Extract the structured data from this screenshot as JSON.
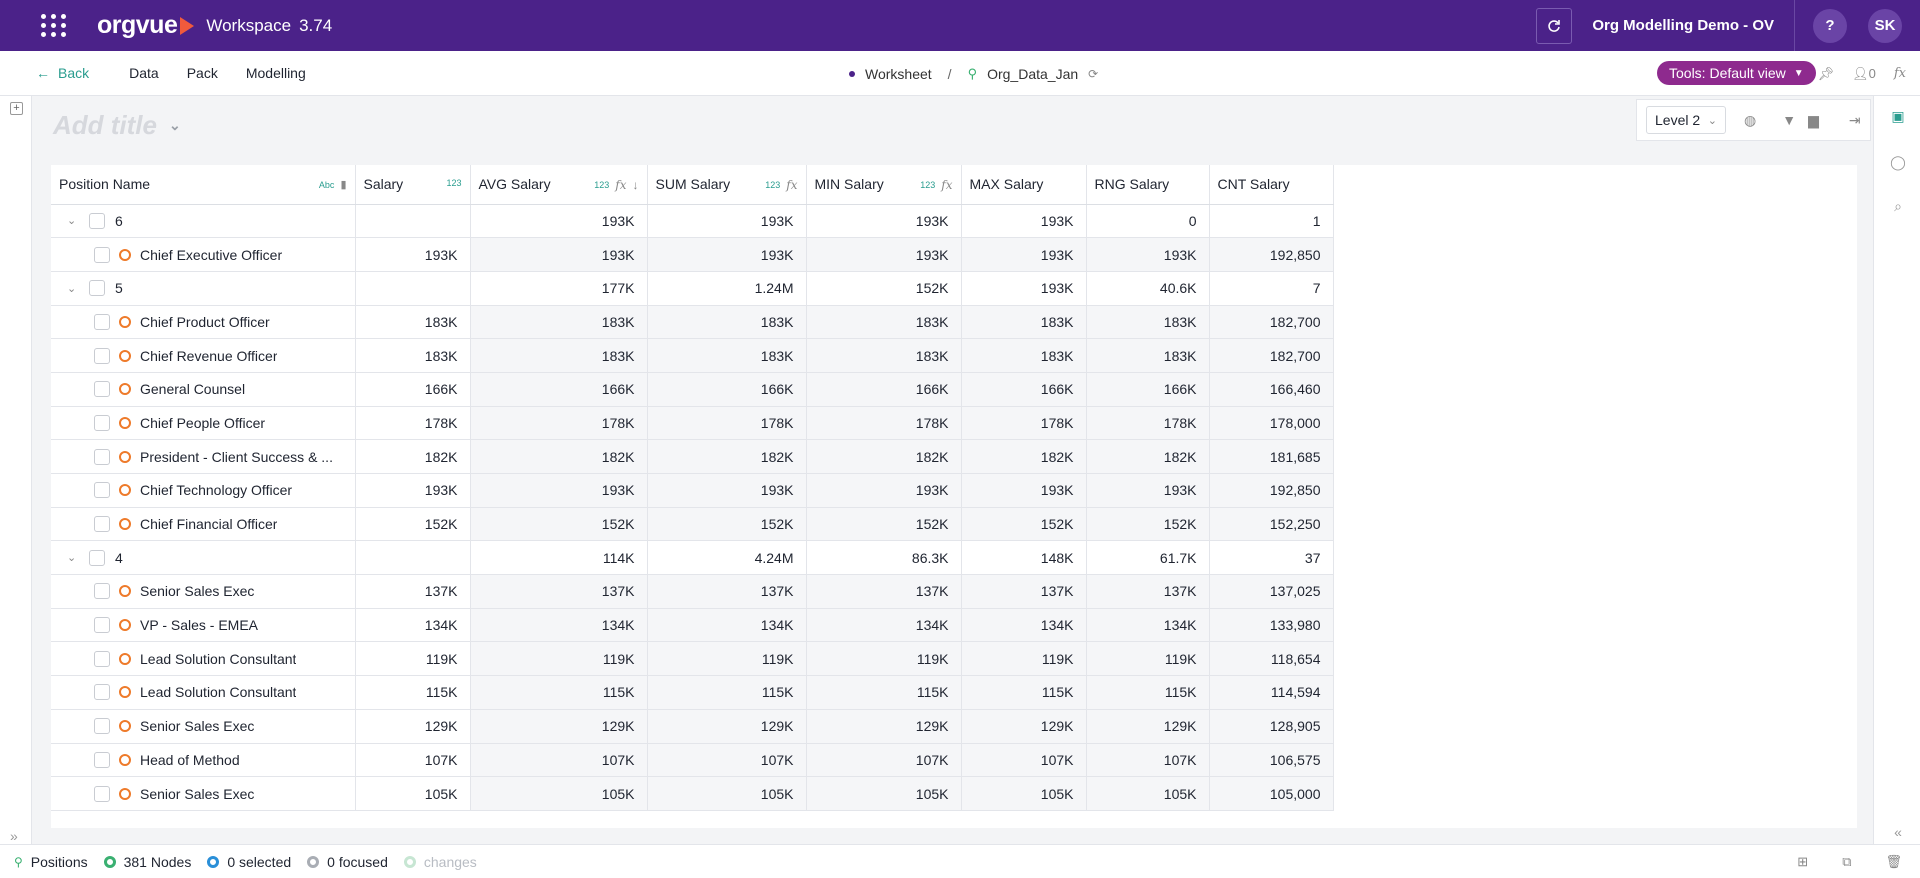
{
  "topbar": {
    "brand": "orgvue",
    "workspace": "Workspace",
    "version": "3.74",
    "project": "Org Modelling Demo - OV",
    "help": "?",
    "user_initials": "SK"
  },
  "nav": {
    "back": "Back",
    "menu": [
      "Data",
      "Pack",
      "Modelling"
    ],
    "breadcrumb_worksheet": "Worksheet",
    "breadcrumb_sep": "/",
    "breadcrumb_dataset": "Org_Data_Jan",
    "tools_label": "Tools: Default view",
    "user_count": "0"
  },
  "title_placeholder": "Add title",
  "level_select": "Level 2",
  "columns": [
    "Position Name",
    "Salary",
    "AVG Salary",
    "SUM Salary",
    "MIN Salary",
    "MAX Salary",
    "RNG Salary",
    "CNT Salary"
  ],
  "rows": [
    {
      "type": "group",
      "name": "6",
      "salary": "",
      "avg": "193K",
      "sum": "193K",
      "min": "193K",
      "max": "193K",
      "rng": "0",
      "cnt": "1"
    },
    {
      "type": "leaf",
      "name": "Chief Executive Officer",
      "salary": "193K",
      "avg": "193K",
      "sum": "193K",
      "min": "193K",
      "max": "193K",
      "rng": "193K",
      "cnt": "192,850"
    },
    {
      "type": "group",
      "name": "5",
      "salary": "",
      "avg": "177K",
      "sum": "1.24M",
      "min": "152K",
      "max": "193K",
      "rng": "40.6K",
      "cnt": "7"
    },
    {
      "type": "leaf",
      "name": "Chief Product Officer",
      "salary": "183K",
      "avg": "183K",
      "sum": "183K",
      "min": "183K",
      "max": "183K",
      "rng": "183K",
      "cnt": "182,700"
    },
    {
      "type": "leaf",
      "name": "Chief Revenue Officer",
      "salary": "183K",
      "avg": "183K",
      "sum": "183K",
      "min": "183K",
      "max": "183K",
      "rng": "183K",
      "cnt": "182,700"
    },
    {
      "type": "leaf",
      "name": "General Counsel",
      "salary": "166K",
      "avg": "166K",
      "sum": "166K",
      "min": "166K",
      "max": "166K",
      "rng": "166K",
      "cnt": "166,460"
    },
    {
      "type": "leaf",
      "name": "Chief People Officer",
      "salary": "178K",
      "avg": "178K",
      "sum": "178K",
      "min": "178K",
      "max": "178K",
      "rng": "178K",
      "cnt": "178,000"
    },
    {
      "type": "leaf",
      "name": "President -  Client Success & ...",
      "salary": "182K",
      "avg": "182K",
      "sum": "182K",
      "min": "182K",
      "max": "182K",
      "rng": "182K",
      "cnt": "181,685"
    },
    {
      "type": "leaf",
      "name": "Chief Technology Officer",
      "salary": "193K",
      "avg": "193K",
      "sum": "193K",
      "min": "193K",
      "max": "193K",
      "rng": "193K",
      "cnt": "192,850"
    },
    {
      "type": "leaf",
      "name": "Chief Financial Officer",
      "salary": "152K",
      "avg": "152K",
      "sum": "152K",
      "min": "152K",
      "max": "152K",
      "rng": "152K",
      "cnt": "152,250"
    },
    {
      "type": "group",
      "name": "4",
      "salary": "",
      "avg": "114K",
      "sum": "4.24M",
      "min": "86.3K",
      "max": "148K",
      "rng": "61.7K",
      "cnt": "37"
    },
    {
      "type": "leaf",
      "name": "Senior Sales Exec",
      "salary": "137K",
      "avg": "137K",
      "sum": "137K",
      "min": "137K",
      "max": "137K",
      "rng": "137K",
      "cnt": "137,025"
    },
    {
      "type": "leaf",
      "name": "VP - Sales - EMEA",
      "salary": "134K",
      "avg": "134K",
      "sum": "134K",
      "min": "134K",
      "max": "134K",
      "rng": "134K",
      "cnt": "133,980"
    },
    {
      "type": "leaf",
      "name": "Lead Solution Consultant",
      "salary": "119K",
      "avg": "119K",
      "sum": "119K",
      "min": "119K",
      "max": "119K",
      "rng": "119K",
      "cnt": "118,654"
    },
    {
      "type": "leaf",
      "name": "Lead Solution Consultant",
      "salary": "115K",
      "avg": "115K",
      "sum": "115K",
      "min": "115K",
      "max": "115K",
      "rng": "115K",
      "cnt": "114,594"
    },
    {
      "type": "leaf",
      "name": "Senior Sales Exec",
      "salary": "129K",
      "avg": "129K",
      "sum": "129K",
      "min": "129K",
      "max": "129K",
      "rng": "129K",
      "cnt": "128,905"
    },
    {
      "type": "leaf",
      "name": "Head of Method",
      "salary": "107K",
      "avg": "107K",
      "sum": "107K",
      "min": "107K",
      "max": "107K",
      "rng": "107K",
      "cnt": "106,575"
    },
    {
      "type": "leaf",
      "name": "Senior Sales Exec",
      "salary": "105K",
      "avg": "105K",
      "sum": "105K",
      "min": "105K",
      "max": "105K",
      "rng": "105K",
      "cnt": "105,000"
    }
  ],
  "status": {
    "dataset": "Positions",
    "nodes": "381 Nodes",
    "selected": "0 selected",
    "focused": "0 focused",
    "changes": "changes"
  }
}
